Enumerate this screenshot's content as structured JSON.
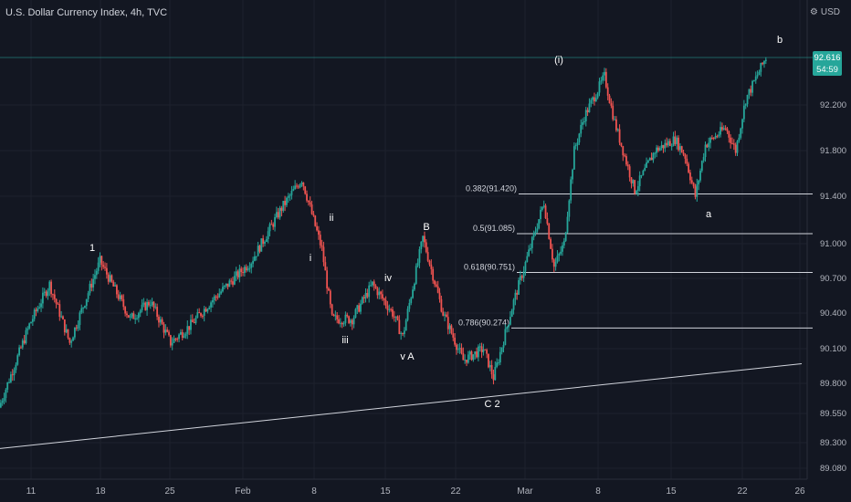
{
  "header": {
    "title": "U.S. Dollar Currency Index, 4h, TVC",
    "currency": "USD",
    "settings_icon": "gear-icon"
  },
  "price_tag": {
    "price": "92.616",
    "countdown": "54:59"
  },
  "colors": {
    "background": "#131722",
    "up": "#26a69a",
    "down": "#ef5350",
    "line": "#d1d4dc"
  },
  "chart_data": {
    "type": "candlestick",
    "title": "U.S. Dollar Currency Index, 4h, TVC",
    "x_ticks": [
      "11",
      "18",
      "25",
      "Feb",
      "8",
      "15",
      "22",
      "Mar",
      "8",
      "15",
      "22",
      "26"
    ],
    "y_ticks": [
      "92.200",
      "91.800",
      "91.400",
      "91.000",
      "90.700",
      "90.400",
      "90.100",
      "89.800",
      "89.550",
      "89.300",
      "89.080"
    ],
    "last_price": 92.616,
    "fib_levels": [
      {
        "label": "0.382(91.420)",
        "value": 91.42
      },
      {
        "label": "0.5(91.085)",
        "value": 91.085
      },
      {
        "label": "0.618(90.751)",
        "value": 90.751
      },
      {
        "label": "0.786(90.274)",
        "value": 90.274
      }
    ],
    "wave_labels": [
      "1",
      "ii",
      "i",
      "iii",
      "iv",
      "v A",
      "B",
      "C 2",
      "(i)",
      "a",
      "b"
    ],
    "path_anchors": [
      [
        "Jan 8",
        89.6
      ],
      [
        "Jan 11",
        90.3
      ],
      [
        "Jan 13",
        90.65
      ],
      [
        "Jan 15",
        90.15
      ],
      [
        "Jan 18",
        90.85
      ],
      [
        "Jan 21",
        90.35
      ],
      [
        "Jan 23",
        90.5
      ],
      [
        "Jan 25",
        90.15
      ],
      [
        "Jan 27",
        90.3
      ],
      [
        "Jan 29",
        90.5
      ],
      [
        "Feb 2",
        90.85
      ],
      [
        "Feb 5",
        91.3
      ],
      [
        "Feb 7",
        91.55
      ],
      [
        "Feb 9",
        90.95
      ],
      [
        "Feb 10",
        90.35
      ],
      [
        "Feb 12",
        90.35
      ],
      [
        "Feb 14",
        90.65
      ],
      [
        "Feb 16",
        90.4
      ],
      [
        "Feb 17",
        90.2
      ],
      [
        "Feb 19",
        91.05
      ],
      [
        "Feb 21",
        90.4
      ],
      [
        "Feb 23",
        90.0
      ],
      [
        "Feb 25",
        90.1
      ],
      [
        "Feb 26",
        89.85
      ],
      [
        "Feb 28",
        90.5
      ],
      [
        "Mar 3",
        91.35
      ],
      [
        "Mar 4",
        90.8
      ],
      [
        "Mar 5",
        91.0
      ],
      [
        "Mar 6",
        91.8
      ],
      [
        "Mar 7",
        92.1
      ],
      [
        "Mar 9",
        92.45
      ],
      [
        "Mar 10",
        92.05
      ],
      [
        "Mar 11",
        91.75
      ],
      [
        "Mar 12",
        91.45
      ],
      [
        "Mar 14",
        91.8
      ],
      [
        "Mar 16",
        91.9
      ],
      [
        "Mar 17",
        91.75
      ],
      [
        "Mar 18",
        91.4
      ],
      [
        "Mar 19",
        91.85
      ],
      [
        "Mar 21",
        92.0
      ],
      [
        "Mar 22",
        91.8
      ],
      [
        "Mar 23",
        92.25
      ],
      [
        "Mar 25",
        92.616
      ]
    ],
    "trendline": [
      [
        "Jan 8",
        89.25
      ],
      [
        "Mar 26",
        89.97
      ]
    ],
    "grid": true
  }
}
